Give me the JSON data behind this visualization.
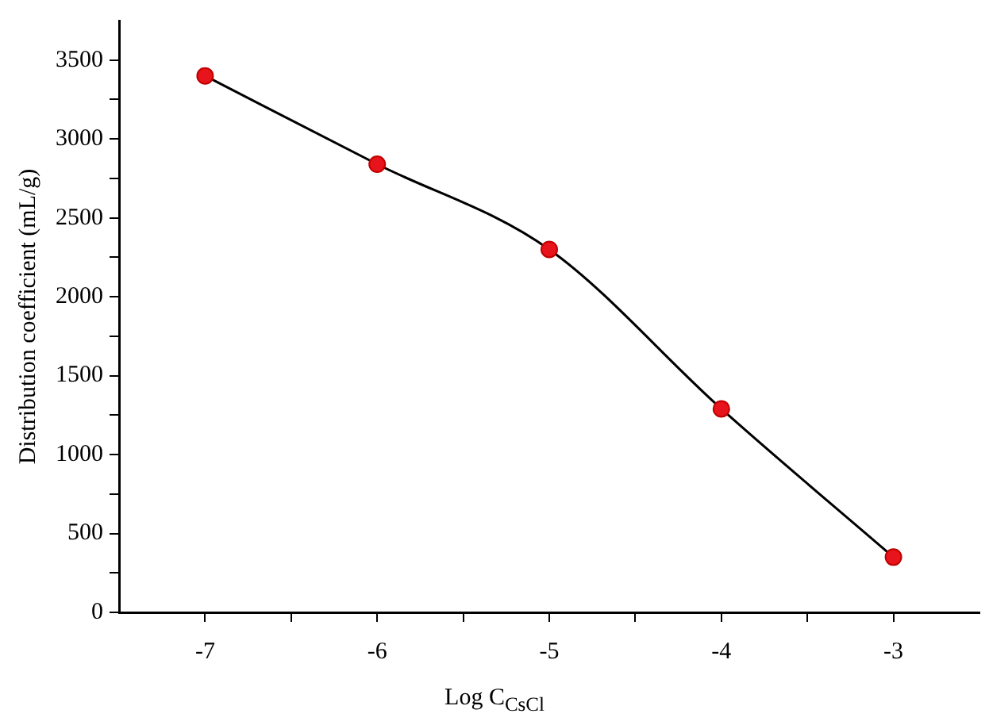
{
  "chart_data": {
    "type": "line",
    "xlabel": "Log C$_{CsCl}$",
    "ylabel": "Distribution coefficient (mL/g)",
    "x": [
      -7,
      -6,
      -5,
      -4,
      -3
    ],
    "series": [
      {
        "color": "#000000",
        "values": [
          3400,
          2840,
          2300,
          1290,
          350
        ]
      }
    ],
    "marker": "circle",
    "line_style": "solid",
    "grid": false,
    "legend": false,
    "xlim": [
      -7.5,
      -2.5
    ],
    "xticks": [
      -7,
      {
        "value": -6.5,
        "label": null
      },
      -6,
      {
        "value": -5.5,
        "label": null
      },
      -5,
      {
        "value": -4.5,
        "label": null
      },
      -4,
      {
        "value": -3.5,
        "label": null
      },
      -3
    ],
    "ylim": [
      0,
      3750
    ],
    "yticks": [
      0,
      {
        "value": 250,
        "label": null
      },
      500,
      {
        "value": 750,
        "label": null
      },
      1000,
      {
        "value": 1250,
        "label": null
      },
      1500,
      {
        "value": 1750,
        "label": null
      },
      2000,
      {
        "value": 2250,
        "label": null
      },
      2500,
      {
        "value": 2750,
        "label": null
      },
      3000,
      {
        "value": 3250,
        "label": null
      },
      3500
    ]
  }
}
